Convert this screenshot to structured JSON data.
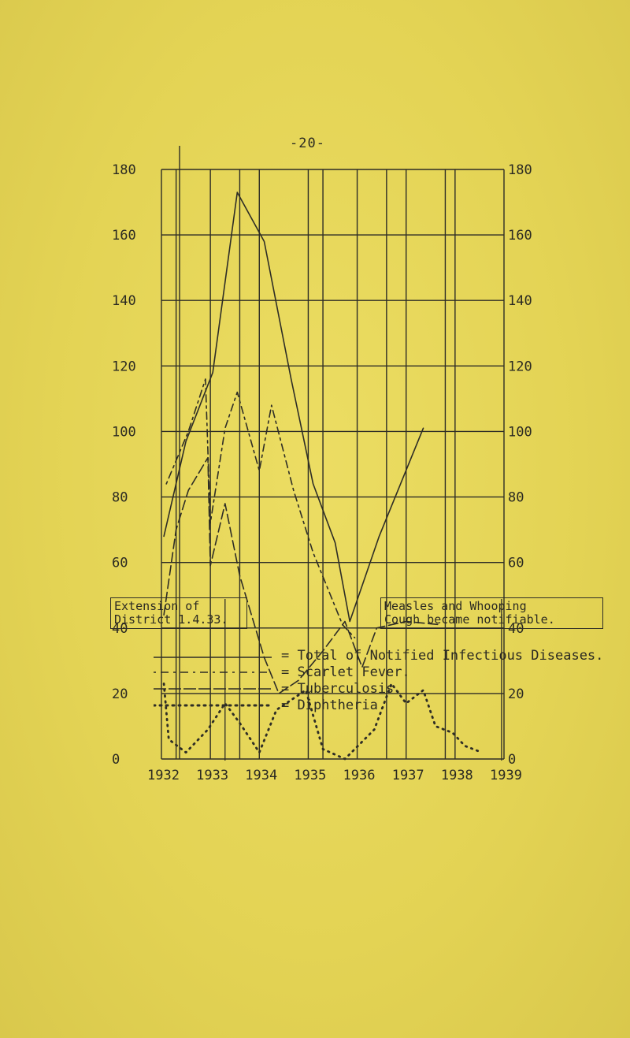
{
  "page_number": "-20-",
  "chart_data": {
    "type": "line",
    "x": [
      1932,
      1933,
      1934,
      1935,
      1936,
      1937,
      1938,
      1939
    ],
    "x_tick_labels": [
      "1932",
      "1933",
      "1934",
      "1935",
      "1936",
      "1937",
      "1938",
      "1939"
    ],
    "y_ticks_left": [
      "180",
      "160",
      "140",
      "120",
      "100",
      "80",
      "60",
      "40",
      "20",
      "0"
    ],
    "y_ticks_right": [
      "180",
      "160",
      "140",
      "120",
      "100",
      "80",
      "60",
      "40",
      "20",
      "0"
    ],
    "ylim": [
      0,
      180
    ],
    "xlim": [
      1932,
      1939
    ],
    "grid": true,
    "legend_placement": "bottom",
    "series": [
      {
        "name": "Total of Notified Infectious Diseases.",
        "style": "solid",
        "color": "#2e2d26",
        "points": [
          [
            1932.05,
            68
          ],
          [
            1932.5,
            97
          ],
          [
            1933.05,
            118
          ],
          [
            1933.55,
            173
          ],
          [
            1934.1,
            158
          ],
          [
            1934.65,
            116
          ],
          [
            1935.1,
            84
          ],
          [
            1935.55,
            66
          ],
          [
            1935.85,
            42
          ],
          [
            1936.45,
            68
          ],
          [
            1937.35,
            101
          ]
        ]
      },
      {
        "name": "Scarlet Fever.",
        "style": "dashdot",
        "color": "#2e2d26",
        "points": [
          [
            1932.1,
            84
          ],
          [
            1932.55,
            100
          ],
          [
            1932.9,
            116
          ],
          [
            1933.0,
            72
          ],
          [
            1933.3,
            101
          ],
          [
            1933.55,
            112
          ],
          [
            1934.0,
            88
          ],
          [
            1934.25,
            108
          ],
          [
            1934.7,
            82
          ],
          [
            1935.1,
            63
          ],
          [
            1935.4,
            52
          ],
          [
            1935.7,
            41
          ],
          [
            1935.95,
            37
          ]
        ]
      },
      {
        "name": "Tuberculosis.",
        "style": "dashed",
        "color": "#2e2d26",
        "points": [
          [
            1932.05,
            44
          ],
          [
            1932.3,
            70
          ],
          [
            1932.55,
            82
          ],
          [
            1932.95,
            92
          ],
          [
            1933.0,
            59
          ],
          [
            1933.3,
            78
          ],
          [
            1933.6,
            56
          ],
          [
            1934.1,
            31
          ],
          [
            1934.4,
            20
          ],
          [
            1934.8,
            24
          ],
          [
            1935.3,
            33
          ],
          [
            1935.75,
            42
          ],
          [
            1936.1,
            28
          ],
          [
            1936.4,
            40
          ],
          [
            1937.0,
            42
          ],
          [
            1937.7,
            41
          ]
        ]
      },
      {
        "name": "Diphtheria.",
        "style": "dotted",
        "color": "#2e2d26",
        "points": [
          [
            1932.05,
            23
          ],
          [
            1932.15,
            6
          ],
          [
            1932.5,
            2
          ],
          [
            1932.95,
            9
          ],
          [
            1933.3,
            17
          ],
          [
            1933.6,
            11
          ],
          [
            1934.0,
            2
          ],
          [
            1934.35,
            15
          ],
          [
            1934.95,
            21
          ],
          [
            1935.3,
            3
          ],
          [
            1935.75,
            0
          ],
          [
            1936.35,
            9
          ],
          [
            1936.7,
            23
          ],
          [
            1937.0,
            17
          ],
          [
            1937.35,
            21
          ],
          [
            1937.6,
            10
          ],
          [
            1937.95,
            8
          ],
          [
            1938.2,
            4
          ],
          [
            1938.55,
            2
          ]
        ]
      }
    ],
    "annotations": [
      {
        "text": "Extension of\nDistrict 1.4.33.",
        "x": 1933.3
      },
      {
        "text": "Measles and Whooping\nCough became notifiable.",
        "x": 1938.95
      }
    ]
  },
  "legend": [
    {
      "symbol": "solid",
      "label": "= Total of Notified Infectious Diseases."
    },
    {
      "symbol": "dashdot",
      "label": "= Scarlet Fever."
    },
    {
      "symbol": "dashed",
      "label": "= Tuberculosis."
    },
    {
      "symbol": "dotted",
      "label": "= Diphtheria."
    }
  ]
}
